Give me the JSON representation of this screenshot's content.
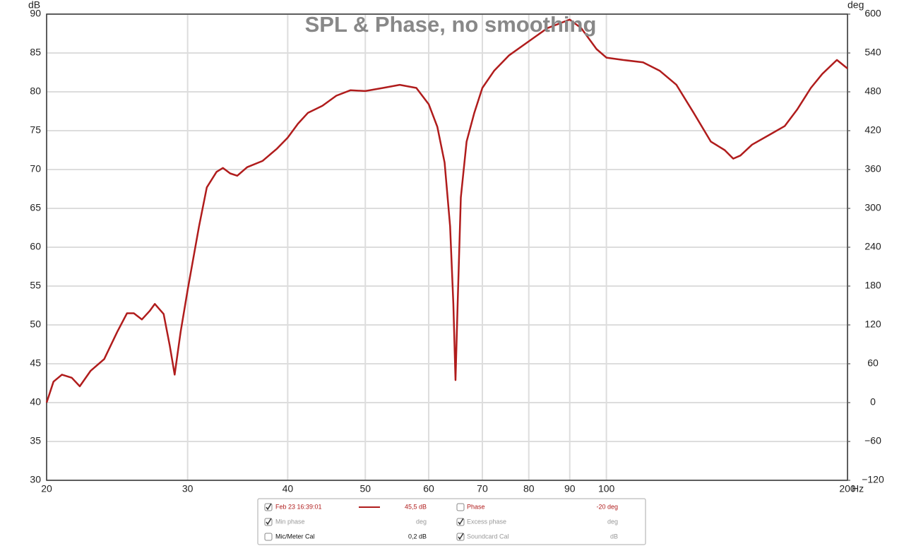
{
  "chart_data": {
    "type": "line",
    "title": "SPL & Phase, no smoothing",
    "y_label": "dB",
    "y2_label": "deg",
    "x_label": "Hz",
    "xscale": "log",
    "grid": true,
    "xlim": [
      20,
      200
    ],
    "xticks": [
      20,
      30,
      40,
      50,
      60,
      70,
      80,
      90,
      100,
      200
    ],
    "ylim": [
      30,
      90
    ],
    "yticks": [
      30,
      35,
      40,
      45,
      50,
      55,
      60,
      65,
      70,
      75,
      80,
      85,
      90
    ],
    "y2lim": [
      -120,
      600
    ],
    "y2ticks": [
      {
        "value": -120,
        "label": "−120"
      },
      {
        "value": -60,
        "label": "−60"
      },
      0,
      60,
      120,
      180,
      240,
      300,
      360,
      420,
      480,
      540,
      600
    ],
    "x": [
      20,
      20.4,
      20.9,
      21.5,
      22.0,
      22.7,
      23.6,
      24.5,
      25.2,
      25.7,
      26.3,
      26.9,
      27.3,
      28.0,
      28.5,
      28.9,
      29.4,
      30,
      31.0,
      31.7,
      32.6,
      33.2,
      33.9,
      34.6,
      35.6,
      37.2,
      38.8,
      40,
      41.2,
      42.4,
      44.2,
      46.0,
      47.9,
      50,
      52.6,
      55.2,
      57.9,
      60,
      61.5,
      62.8,
      63.8,
      64.4,
      64.8,
      65.2,
      65.8,
      66.9,
      68.4,
      70,
      72.4,
      75.6,
      80,
      84.4,
      90,
      93.0,
      97.2,
      100,
      104.9,
      111.1,
      116.6,
      122.3,
      128.5,
      135,
      140.5,
      144,
      147,
      152,
      160,
      167,
      173,
      180,
      186,
      194,
      200
    ],
    "series": [
      {
        "name": "Feb 23 16:39:01",
        "color": "#b01c1c",
        "values": [
          40,
          42.7,
          43.6,
          43.2,
          42.1,
          44.1,
          45.6,
          49.1,
          51.5,
          51.5,
          50.7,
          51.8,
          52.7,
          51.4,
          47.3,
          43.6,
          49.1,
          54.5,
          62.7,
          67.7,
          69.7,
          70.2,
          69.5,
          69.2,
          70.3,
          71.1,
          72.7,
          74.1,
          75.9,
          77.3,
          78.2,
          79.5,
          80.2,
          80.1,
          80.5,
          80.9,
          80.5,
          78.4,
          75.5,
          70.9,
          62.7,
          52.7,
          42.9,
          52.7,
          66.4,
          73.6,
          77.3,
          80.5,
          82.7,
          84.7,
          86.5,
          88.2,
          89.3,
          88.2,
          85.5,
          84.4,
          84.1,
          83.8,
          82.7,
          80.9,
          77.3,
          73.6,
          72.5,
          71.4,
          71.8,
          73.2,
          74.5,
          75.6,
          77.7,
          80.5,
          82.3,
          84.1,
          83.0
        ]
      }
    ]
  },
  "legend_panel": {
    "rows": [
      {
        "checked": true,
        "label": "Feb 23 16:39:01",
        "value": "45,5 dB",
        "checked2": false,
        "label2": "Phase",
        "value2": "-20 deg"
      },
      {
        "checked": true,
        "label": "Min phase",
        "value": "deg",
        "checked2": true,
        "label2": "Excess phase",
        "value2": "deg"
      },
      {
        "checked": false,
        "label": "Mic/Meter Cal",
        "value": "0,2 dB",
        "checked2": true,
        "label2": "Soundcard Cal",
        "value2": "dB"
      }
    ]
  }
}
